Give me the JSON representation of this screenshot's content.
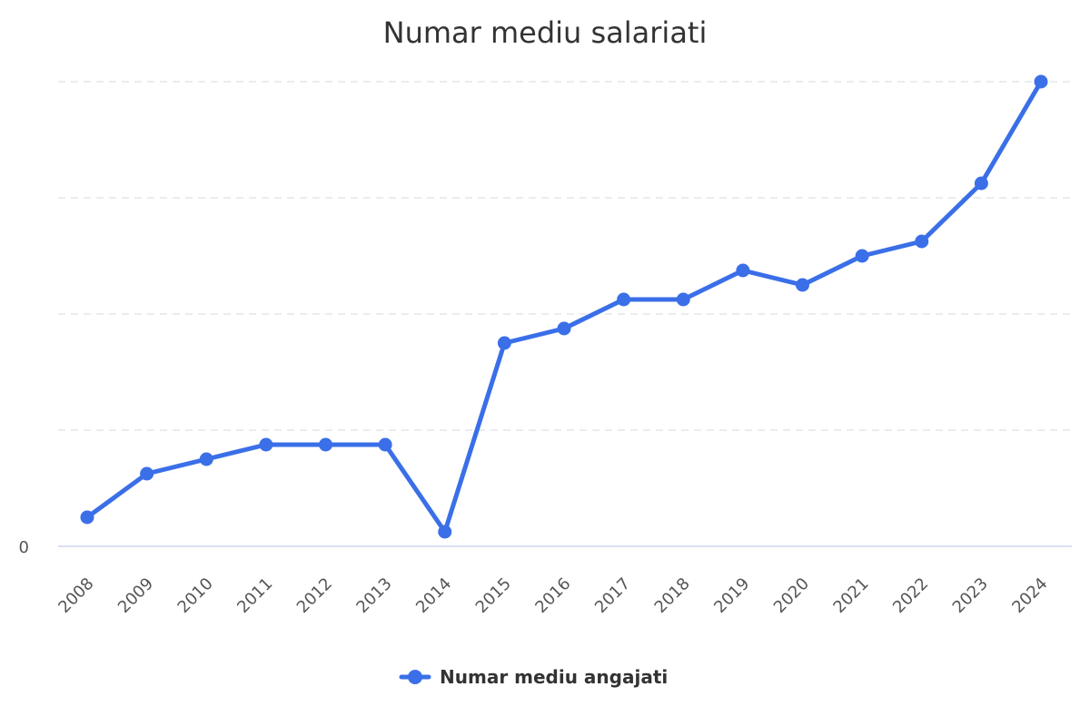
{
  "chart_data": {
    "type": "line",
    "title": "Numar mediu salariati",
    "xlabel": "",
    "ylabel": "",
    "x": [
      "2008",
      "2009",
      "2010",
      "2011",
      "2012",
      "2013",
      "2014",
      "2015",
      "2016",
      "2017",
      "2018",
      "2019",
      "2020",
      "2021",
      "2022",
      "2023",
      "2024"
    ],
    "y_tick_labels": [
      "0"
    ],
    "ylim": [
      0,
      32
    ],
    "grid": true,
    "legend_position": "bottom-center",
    "series": [
      {
        "name": "Numar mediu angajati",
        "color": "#3a6fe8",
        "values": [
          2,
          5,
          6,
          7,
          7,
          7,
          1,
          14,
          15,
          17,
          17,
          19,
          18,
          20,
          21,
          25,
          32
        ]
      }
    ]
  }
}
